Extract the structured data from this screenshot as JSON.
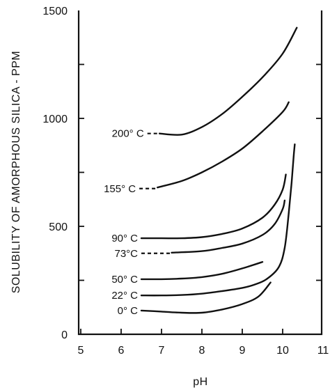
{
  "chart_data": {
    "type": "line",
    "xlabel": "pH",
    "ylabel": "SOLUBILITY OF AMORPHOUS SILICA - PPM",
    "xlim": [
      5,
      11
    ],
    "ylim": [
      0,
      1500
    ],
    "x_ticks": [
      "5",
      "6",
      "7",
      "8",
      "9",
      "10",
      "11"
    ],
    "y_ticks": [
      "0",
      "500",
      "1000",
      "1500"
    ],
    "grid": false,
    "legend": "none",
    "series": [
      {
        "name": "200° C",
        "dashed_lead": [
          [
            6.65,
            930
          ],
          [
            6.95,
            930
          ]
        ],
        "points": [
          [
            6.95,
            930
          ],
          [
            7.5,
            925
          ],
          [
            8.0,
            960
          ],
          [
            8.5,
            1020
          ],
          [
            9.0,
            1100
          ],
          [
            9.5,
            1190
          ],
          [
            10.0,
            1300
          ],
          [
            10.35,
            1420
          ]
        ]
      },
      {
        "name": "155° C",
        "dashed_lead": [
          [
            6.45,
            675
          ],
          [
            6.9,
            675
          ]
        ],
        "points": [
          [
            6.9,
            680
          ],
          [
            7.5,
            710
          ],
          [
            8.0,
            750
          ],
          [
            8.5,
            800
          ],
          [
            9.0,
            860
          ],
          [
            9.5,
            940
          ],
          [
            10.0,
            1030
          ],
          [
            10.15,
            1075
          ]
        ]
      },
      {
        "name": "90° C",
        "dashed_lead": [],
        "points": [
          [
            6.5,
            445
          ],
          [
            7.0,
            445
          ],
          [
            7.5,
            445
          ],
          [
            8.0,
            450
          ],
          [
            8.5,
            465
          ],
          [
            9.0,
            490
          ],
          [
            9.5,
            540
          ],
          [
            9.8,
            600
          ],
          [
            10.0,
            670
          ],
          [
            10.08,
            740
          ]
        ]
      },
      {
        "name": "73°C",
        "dashed_lead": [
          [
            6.5,
            375
          ],
          [
            7.25,
            375
          ]
        ],
        "points": [
          [
            7.25,
            378
          ],
          [
            8.0,
            385
          ],
          [
            8.5,
            400
          ],
          [
            9.0,
            420
          ],
          [
            9.5,
            460
          ],
          [
            9.8,
            510
          ],
          [
            10.0,
            580
          ],
          [
            10.05,
            620
          ]
        ]
      },
      {
        "name": "50° C",
        "dashed_lead": [],
        "points": [
          [
            6.5,
            255
          ],
          [
            7.0,
            255
          ],
          [
            7.5,
            258
          ],
          [
            8.0,
            265
          ],
          [
            8.5,
            280
          ],
          [
            9.0,
            305
          ],
          [
            9.5,
            335
          ]
        ]
      },
      {
        "name": "22° C",
        "dashed_lead": [],
        "points": [
          [
            6.5,
            180
          ],
          [
            7.0,
            180
          ],
          [
            7.5,
            182
          ],
          [
            8.0,
            188
          ],
          [
            8.5,
            200
          ],
          [
            9.0,
            215
          ],
          [
            9.3,
            230
          ],
          [
            9.6,
            255
          ],
          [
            9.9,
            310
          ],
          [
            10.05,
            400
          ],
          [
            10.15,
            560
          ],
          [
            10.22,
            700
          ],
          [
            10.27,
            820
          ],
          [
            10.3,
            880
          ]
        ]
      },
      {
        "name": "0° C",
        "dashed_lead": [],
        "points": [
          [
            6.5,
            110
          ],
          [
            7.0,
            105
          ],
          [
            7.5,
            100
          ],
          [
            8.0,
            100
          ],
          [
            8.5,
            115
          ],
          [
            9.0,
            140
          ],
          [
            9.4,
            175
          ],
          [
            9.7,
            240
          ]
        ]
      }
    ]
  }
}
